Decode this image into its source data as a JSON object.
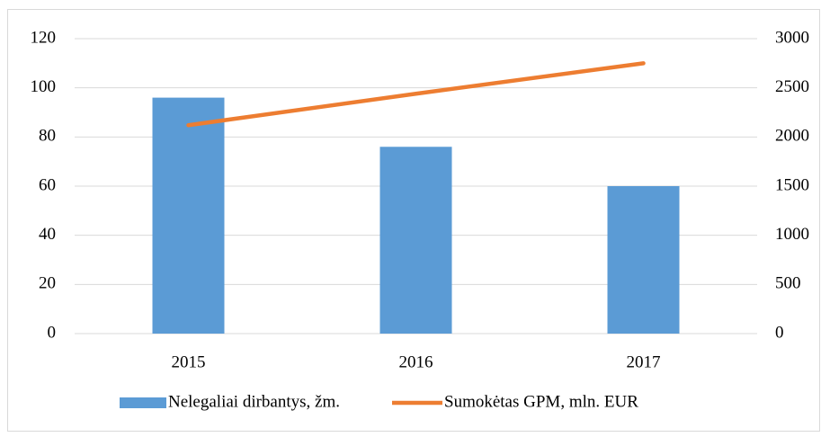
{
  "chart_data": {
    "type": "bar_line",
    "categories": [
      "2015",
      "2016",
      "2017"
    ],
    "series": [
      {
        "name": "Nelegaliai dirbantys, žm.",
        "color": "#5b9bd5",
        "type": "bar",
        "values": [
          96,
          76,
          60
        ]
      },
      {
        "name": "Sumokėtas GPM, mln. EUR",
        "color": "#ed7d31",
        "type": "line",
        "axis": "y2",
        "values": [
          2120,
          2440,
          2750
        ]
      }
    ],
    "ylim": [
      0,
      120
    ],
    "yticks": [
      0,
      20,
      40,
      60,
      80,
      100,
      120
    ],
    "y2lim": [
      0,
      3000
    ],
    "y2ticks": [
      0,
      500,
      1000,
      1500,
      2000,
      2500,
      3000
    ],
    "grid": true,
    "legend": "bottom"
  }
}
